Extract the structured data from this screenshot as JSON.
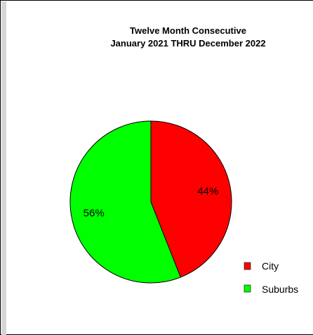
{
  "chart_data": {
    "type": "pie",
    "title": "Twelve Month Consecutive",
    "subtitle": "January 2021 THRU December 2022",
    "slices": [
      {
        "label": "City",
        "value": 44,
        "value_label": "44%",
        "color": "#ff0000"
      },
      {
        "label": "Suburbs",
        "value": 56,
        "value_label": "56%",
        "color": "#00ff00"
      }
    ],
    "legend_position": "bottom-right",
    "start_angle": "top (12 o'clock), clockwise"
  }
}
